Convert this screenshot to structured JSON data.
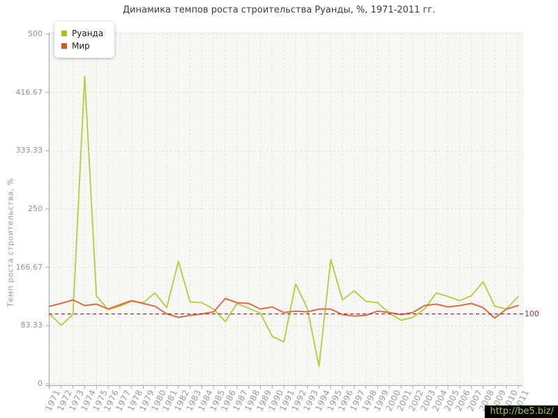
{
  "title": "Динамика темпов роста строительства Руанды, %, 1971-2011 гг.",
  "watermark": {
    "text": "http://be5.biz/",
    "bg": "#000000",
    "fg": "#aacb2d"
  },
  "y_axis": {
    "title": "Темп роста строительства, %",
    "ticks": [
      {
        "value": 0,
        "label": "0"
      },
      {
        "value": 83.33,
        "label": "83.33"
      },
      {
        "value": 166.67,
        "label": "166.67"
      },
      {
        "value": 250,
        "label": "250"
      },
      {
        "value": 333.33,
        "label": "333.33"
      },
      {
        "value": 416.67,
        "label": "416.67"
      },
      {
        "value": 500,
        "label": "500"
      }
    ]
  },
  "threshold": {
    "value": 100,
    "label": "100",
    "color": "#993333"
  },
  "legend": [
    {
      "label": "Руанда",
      "color": "#a5c41c"
    },
    {
      "label": "Мир",
      "color": "#d8571c"
    }
  ],
  "chart_data": {
    "type": "line",
    "title": "Динамика темпов роста строительства Руанды, %, 1971-2011 гг.",
    "xlabel": "",
    "ylabel": "Темп роста строительства, %",
    "ylim": [
      0,
      500
    ],
    "grid": true,
    "legend_position": "top-left",
    "reference_line": 100,
    "x": [
      1971,
      1972,
      1973,
      1974,
      1975,
      1976,
      1977,
      1978,
      1979,
      1980,
      1981,
      1982,
      1983,
      1984,
      1985,
      1986,
      1987,
      1988,
      1989,
      1990,
      1991,
      1992,
      1993,
      1994,
      1995,
      1996,
      1997,
      1998,
      1999,
      2000,
      2001,
      2002,
      2003,
      2004,
      2005,
      2006,
      2007,
      2008,
      2009,
      2010,
      2011
    ],
    "series": [
      {
        "name": "Руанда",
        "key": "rwanda",
        "color": "#b7d147",
        "values": [
          100,
          84,
          99,
          440,
          126,
          106,
          111,
          118,
          116,
          130,
          109,
          175,
          117,
          116,
          107,
          89,
          115,
          108,
          101,
          68,
          60,
          143,
          108,
          25,
          178,
          120,
          133,
          118,
          116,
          101,
          91,
          95,
          107,
          130,
          125,
          119,
          126,
          146,
          111,
          107,
          125
        ]
      },
      {
        "name": "Мир",
        "key": "world",
        "color": "#e06b42",
        "values": [
          111,
          115,
          120,
          112,
          114,
          107,
          113,
          119,
          115,
          111,
          100,
          95,
          98,
          100,
          103,
          122,
          116,
          115,
          107,
          110,
          102,
          104,
          103,
          107,
          107,
          99,
          97,
          98,
          104,
          102,
          99,
          102,
          112,
          114,
          110,
          112,
          115,
          109,
          94,
          107,
          112
        ]
      }
    ]
  }
}
